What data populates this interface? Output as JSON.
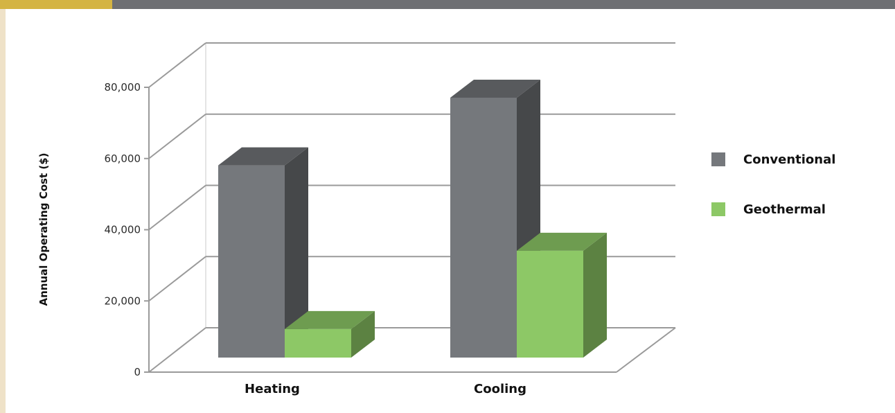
{
  "chart_data": {
    "type": "bar",
    "title": "",
    "xlabel": "",
    "ylabel": "Annual Operating Cost ($)",
    "categories": [
      "Heating",
      "Cooling"
    ],
    "ylim": [
      0,
      80000
    ],
    "yticks": [
      0,
      20000,
      40000,
      60000,
      80000
    ],
    "ytick_labels": [
      "0",
      "20,000",
      "40,000",
      "60,000",
      "80,000"
    ],
    "series": [
      {
        "name": "Conventional",
        "values": [
          54000,
          73000
        ],
        "color": "#75787c"
      },
      {
        "name": "Geothermal",
        "values": [
          8000,
          30000
        ],
        "color": "#8dc866"
      }
    ],
    "grid": true,
    "legend": "right",
    "style": "3d"
  },
  "theme": {
    "accent": "#d4b443",
    "header_bar": "#6e6f73",
    "side_strip": "#efe2c8"
  }
}
